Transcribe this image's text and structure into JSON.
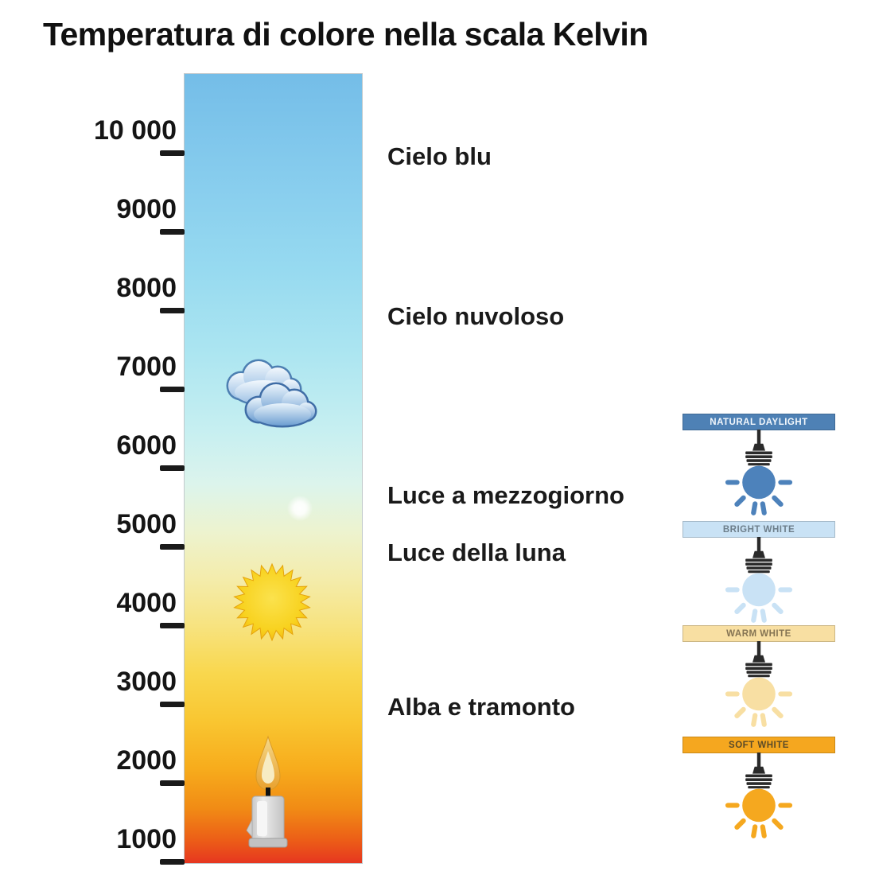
{
  "title": "Temperatura di colore nella scala Kelvin",
  "scale": {
    "unit": "Kelvin",
    "tick_labels": [
      "10 000",
      "9000",
      "8000",
      "7000",
      "6000",
      "5000",
      "4000",
      "3000",
      "2000",
      "1000"
    ],
    "gradient_stops": [
      {
        "pos": "0%",
        "color": "#74bde8"
      },
      {
        "pos": "12%",
        "color": "#85cbed"
      },
      {
        "pos": "25%",
        "color": "#97daf0"
      },
      {
        "pos": "35%",
        "color": "#abe5f1"
      },
      {
        "pos": "45%",
        "color": "#c6eff1"
      },
      {
        "pos": "52%",
        "color": "#dcf4ec"
      },
      {
        "pos": "58%",
        "color": "#edf3cf"
      },
      {
        "pos": "64%",
        "color": "#f4ecab"
      },
      {
        "pos": "70%",
        "color": "#f7e37f"
      },
      {
        "pos": "76%",
        "color": "#f9d74d"
      },
      {
        "pos": "82%",
        "color": "#f9c631"
      },
      {
        "pos": "88%",
        "color": "#f7ac1c"
      },
      {
        "pos": "93%",
        "color": "#f18c15"
      },
      {
        "pos": "97%",
        "color": "#ec5f17"
      },
      {
        "pos": "100%",
        "color": "#e63620"
      }
    ]
  },
  "annotations": [
    {
      "label": "Cielo blu"
    },
    {
      "label": "Cielo nuvoloso"
    },
    {
      "label": "Luce a mezzogiorno"
    },
    {
      "label": "Luce della luna"
    },
    {
      "label": "Alba e tramonto"
    }
  ],
  "icons": [
    {
      "name": "cloud-icon"
    },
    {
      "name": "moon-icon"
    },
    {
      "name": "sun-icon"
    },
    {
      "name": "candle-icon"
    }
  ],
  "bulb_panels": [
    {
      "label": "NATURAL DAYLIGHT",
      "header_bg": "#4e81b5",
      "header_text_color": "#f2f7fc",
      "bulb_color": "#4d82bb"
    },
    {
      "label": "BRIGHT WHITE",
      "header_bg": "#c9e2f5",
      "header_text_color": "#6d7e8a",
      "bulb_color": "#c9e2f5"
    },
    {
      "label": "WARM WHITE",
      "header_bg": "#f8dfa2",
      "header_text_color": "#857453",
      "bulb_color": "#f8dfa3"
    },
    {
      "label": "SOFT WHITE",
      "header_bg": "#f5a71f",
      "header_text_color": "#5a4a28",
      "bulb_color": "#f5a81f"
    }
  ]
}
